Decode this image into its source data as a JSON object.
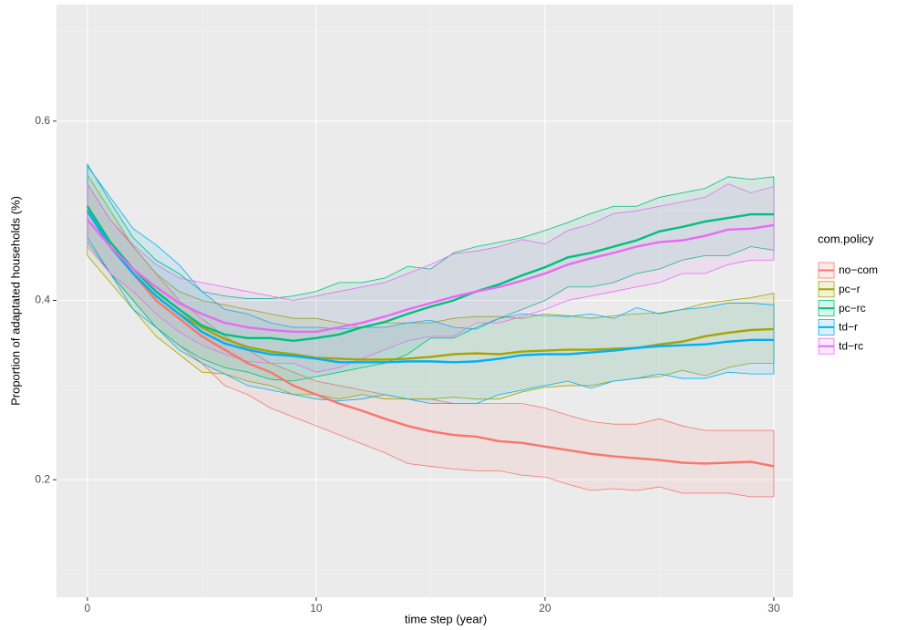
{
  "chart_data": {
    "type": "line-ribbon",
    "x_label": "time step (year)",
    "y_label": "Proportion of adaptated households (%)",
    "legend_title": "com.policy",
    "legend_position": "right",
    "xlim": [
      -1.35,
      30.84
    ],
    "ylim": [
      0.069,
      0.73
    ],
    "xticks": [
      0,
      10,
      20,
      30
    ],
    "yticks": [
      0.2,
      0.4,
      0.6
    ],
    "xminor": [
      5,
      15,
      25
    ],
    "yminor": [
      0.1,
      0.3,
      0.5,
      0.7
    ],
    "grid": true,
    "x": [
      0,
      1,
      2,
      3,
      4,
      5,
      6,
      7,
      8,
      9,
      10,
      11,
      12,
      13,
      14,
      15,
      16,
      17,
      18,
      19,
      20,
      21,
      22,
      23,
      24,
      25,
      26,
      27,
      28,
      29,
      30
    ],
    "series": [
      {
        "name": "no−com",
        "color": "#F8766D",
        "values": [
          0.5,
          0.46,
          0.43,
          0.4,
          0.38,
          0.36,
          0.345,
          0.33,
          0.32,
          0.305,
          0.295,
          0.285,
          0.277,
          0.268,
          0.26,
          0.254,
          0.25,
          0.248,
          0.243,
          0.241,
          0.237,
          0.233,
          0.229,
          0.226,
          0.224,
          0.222,
          0.219,
          0.218,
          0.219,
          0.22,
          0.215
        ],
        "upper": [
          0.53,
          0.49,
          0.46,
          0.43,
          0.4,
          0.38,
          0.36,
          0.345,
          0.33,
          0.32,
          0.31,
          0.305,
          0.3,
          0.295,
          0.29,
          0.29,
          0.285,
          0.285,
          0.285,
          0.285,
          0.28,
          0.272,
          0.265,
          0.262,
          0.262,
          0.268,
          0.26,
          0.255,
          0.255,
          0.255,
          0.255
        ],
        "lower": [
          0.47,
          0.43,
          0.4,
          0.37,
          0.35,
          0.33,
          0.305,
          0.295,
          0.28,
          0.27,
          0.26,
          0.25,
          0.24,
          0.23,
          0.218,
          0.215,
          0.212,
          0.21,
          0.21,
          0.205,
          0.203,
          0.195,
          0.188,
          0.19,
          0.188,
          0.192,
          0.185,
          0.185,
          0.185,
          0.181,
          0.181
        ]
      },
      {
        "name": "pc−r",
        "color": "#A3A500",
        "values": [
          0.5,
          0.46,
          0.43,
          0.405,
          0.385,
          0.37,
          0.357,
          0.348,
          0.343,
          0.34,
          0.336,
          0.335,
          0.334,
          0.334,
          0.335,
          0.337,
          0.34,
          0.341,
          0.34,
          0.343,
          0.344,
          0.345,
          0.345,
          0.346,
          0.347,
          0.351,
          0.354,
          0.36,
          0.364,
          0.367,
          0.368
        ],
        "upper": [
          0.54,
          0.5,
          0.46,
          0.43,
          0.41,
          0.4,
          0.395,
          0.39,
          0.385,
          0.38,
          0.38,
          0.375,
          0.37,
          0.375,
          0.375,
          0.375,
          0.38,
          0.382,
          0.382,
          0.38,
          0.385,
          0.383,
          0.38,
          0.383,
          0.385,
          0.386,
          0.39,
          0.397,
          0.4,
          0.403,
          0.408
        ],
        "lower": [
          0.45,
          0.42,
          0.39,
          0.36,
          0.34,
          0.32,
          0.318,
          0.31,
          0.305,
          0.295,
          0.295,
          0.29,
          0.295,
          0.29,
          0.29,
          0.29,
          0.292,
          0.29,
          0.29,
          0.298,
          0.303,
          0.305,
          0.305,
          0.31,
          0.313,
          0.315,
          0.322,
          0.316,
          0.325,
          0.33,
          0.33
        ]
      },
      {
        "name": "pc−rc",
        "color": "#00BF7D",
        "values": [
          0.505,
          0.465,
          0.435,
          0.41,
          0.39,
          0.372,
          0.362,
          0.358,
          0.358,
          0.355,
          0.358,
          0.362,
          0.37,
          0.376,
          0.385,
          0.393,
          0.4,
          0.41,
          0.418,
          0.428,
          0.437,
          0.448,
          0.453,
          0.46,
          0.467,
          0.477,
          0.482,
          0.488,
          0.492,
          0.496,
          0.496
        ],
        "upper": [
          0.552,
          0.51,
          0.47,
          0.445,
          0.43,
          0.41,
          0.405,
          0.402,
          0.402,
          0.405,
          0.41,
          0.42,
          0.42,
          0.425,
          0.438,
          0.435,
          0.453,
          0.46,
          0.465,
          0.47,
          0.478,
          0.487,
          0.497,
          0.505,
          0.505,
          0.515,
          0.52,
          0.525,
          0.538,
          0.535,
          0.538
        ],
        "lower": [
          0.465,
          0.43,
          0.4,
          0.37,
          0.35,
          0.335,
          0.325,
          0.32,
          0.312,
          0.31,
          0.315,
          0.32,
          0.325,
          0.33,
          0.34,
          0.358,
          0.358,
          0.37,
          0.38,
          0.39,
          0.4,
          0.415,
          0.415,
          0.42,
          0.43,
          0.435,
          0.445,
          0.45,
          0.45,
          0.46,
          0.456
        ]
      },
      {
        "name": "td−r",
        "color": "#00B0F6",
        "values": [
          0.5,
          0.46,
          0.43,
          0.405,
          0.385,
          0.365,
          0.352,
          0.345,
          0.34,
          0.338,
          0.335,
          0.331,
          0.331,
          0.331,
          0.332,
          0.332,
          0.331,
          0.332,
          0.335,
          0.339,
          0.34,
          0.34,
          0.342,
          0.344,
          0.347,
          0.349,
          0.35,
          0.351,
          0.354,
          0.356,
          0.356
        ],
        "upper": [
          0.55,
          0.515,
          0.48,
          0.462,
          0.44,
          0.41,
          0.39,
          0.385,
          0.375,
          0.37,
          0.37,
          0.368,
          0.37,
          0.37,
          0.375,
          0.378,
          0.37,
          0.368,
          0.38,
          0.385,
          0.383,
          0.382,
          0.385,
          0.38,
          0.392,
          0.385,
          0.39,
          0.392,
          0.397,
          0.397,
          0.395
        ],
        "lower": [
          0.47,
          0.43,
          0.39,
          0.37,
          0.345,
          0.33,
          0.318,
          0.305,
          0.3,
          0.295,
          0.29,
          0.288,
          0.29,
          0.295,
          0.29,
          0.285,
          0.285,
          0.285,
          0.295,
          0.3,
          0.305,
          0.31,
          0.302,
          0.31,
          0.313,
          0.318,
          0.313,
          0.313,
          0.32,
          0.318,
          0.318
        ]
      },
      {
        "name": "td−rc",
        "color": "#E76BF3",
        "values": [
          0.49,
          0.46,
          0.435,
          0.415,
          0.397,
          0.385,
          0.375,
          0.37,
          0.367,
          0.365,
          0.365,
          0.37,
          0.375,
          0.382,
          0.39,
          0.397,
          0.404,
          0.41,
          0.415,
          0.422,
          0.43,
          0.44,
          0.447,
          0.453,
          0.46,
          0.465,
          0.467,
          0.472,
          0.479,
          0.48,
          0.484
        ],
        "upper": [
          0.53,
          0.49,
          0.462,
          0.44,
          0.425,
          0.42,
          0.415,
          0.41,
          0.405,
          0.4,
          0.405,
          0.41,
          0.415,
          0.42,
          0.43,
          0.44,
          0.452,
          0.455,
          0.46,
          0.468,
          0.463,
          0.478,
          0.485,
          0.497,
          0.5,
          0.505,
          0.51,
          0.515,
          0.53,
          0.52,
          0.527
        ],
        "lower": [
          0.46,
          0.43,
          0.41,
          0.385,
          0.365,
          0.35,
          0.34,
          0.332,
          0.33,
          0.33,
          0.32,
          0.325,
          0.335,
          0.345,
          0.355,
          0.36,
          0.36,
          0.375,
          0.375,
          0.382,
          0.39,
          0.4,
          0.405,
          0.41,
          0.415,
          0.42,
          0.43,
          0.43,
          0.44,
          0.445,
          0.445
        ]
      }
    ]
  }
}
